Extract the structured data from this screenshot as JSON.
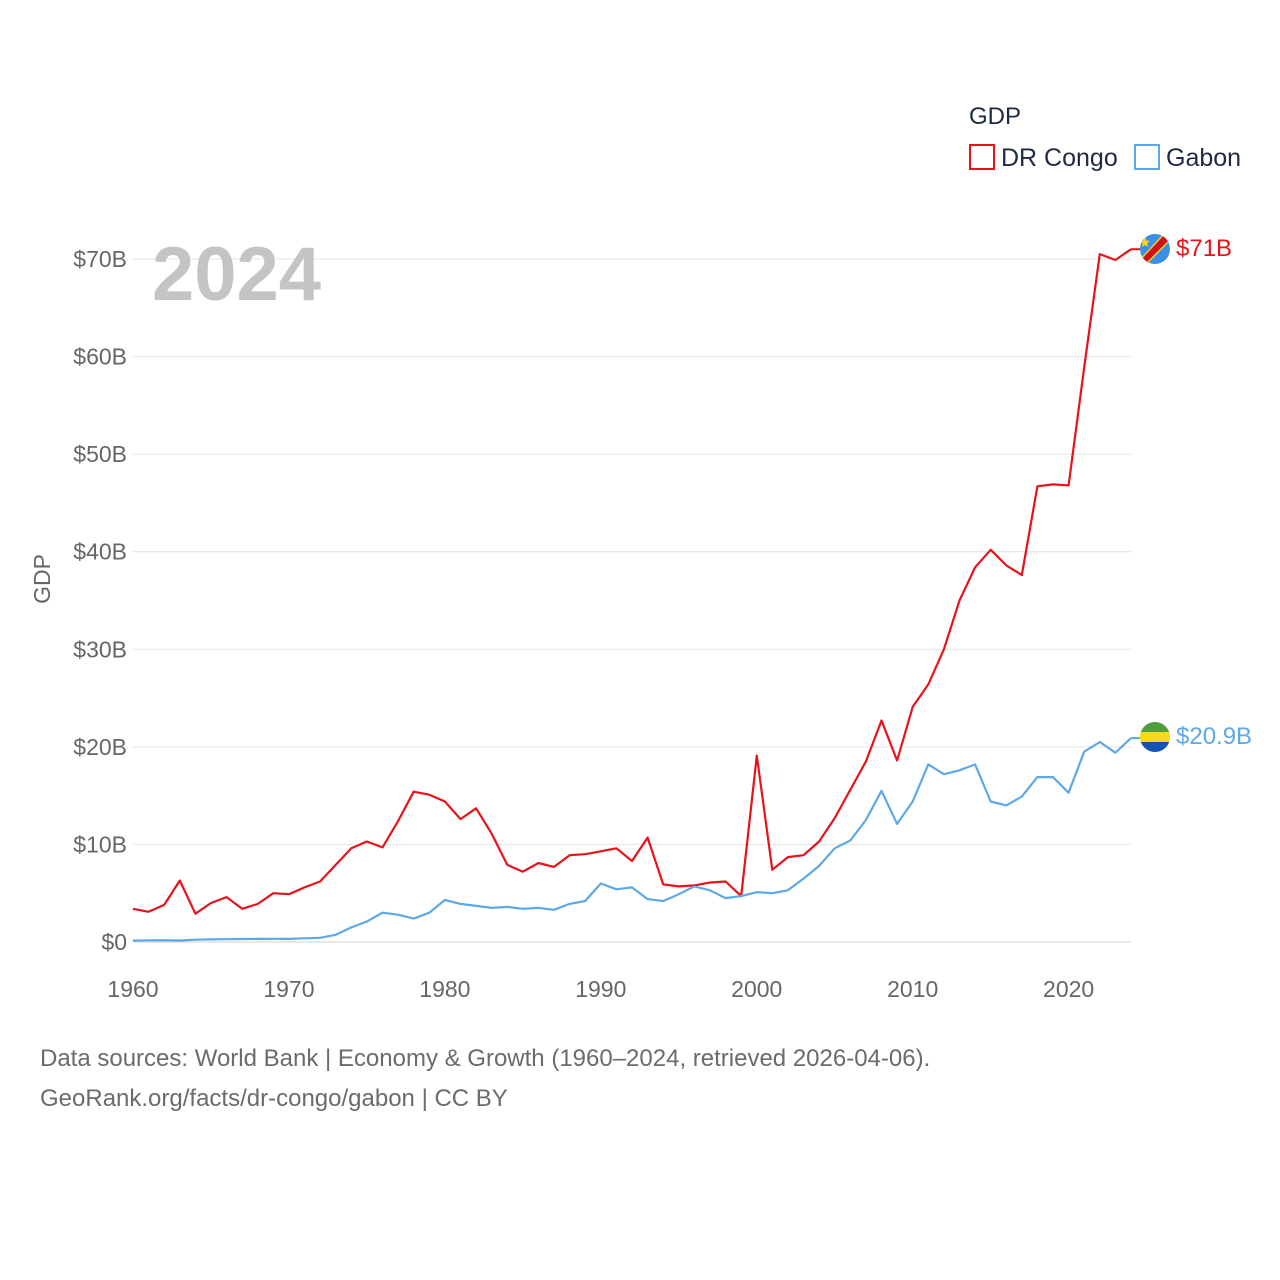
{
  "chart_data": {
    "type": "line",
    "legend_title": "GDP",
    "ylabel": "GDP",
    "year_label": "2024",
    "xlim": [
      1960,
      2024
    ],
    "ylim": [
      0,
      70
    ],
    "x_ticks": [
      "1960",
      "1970",
      "1980",
      "1990",
      "2000",
      "2010",
      "2020"
    ],
    "y_ticks": [
      "$0",
      "$10B",
      "$20B",
      "$30B",
      "$40B",
      "$50B",
      "$60B",
      "$70B"
    ],
    "x": [
      1960,
      1961,
      1962,
      1963,
      1964,
      1965,
      1966,
      1967,
      1968,
      1969,
      1970,
      1971,
      1972,
      1973,
      1974,
      1975,
      1976,
      1977,
      1978,
      1979,
      1980,
      1981,
      1982,
      1983,
      1984,
      1985,
      1986,
      1987,
      1988,
      1989,
      1990,
      1991,
      1992,
      1993,
      1994,
      1995,
      1996,
      1997,
      1998,
      1999,
      2000,
      2001,
      2002,
      2003,
      2004,
      2005,
      2006,
      2007,
      2008,
      2009,
      2010,
      2011,
      2012,
      2013,
      2014,
      2015,
      2016,
      2017,
      2018,
      2019,
      2020,
      2021,
      2022,
      2023,
      2024
    ],
    "series": [
      {
        "name": "DR Congo",
        "color": "#e8131a",
        "end_label": "$71B",
        "flag_icon": "dr-congo-flag-icon",
        "values": [
          3.4,
          3.1,
          3.8,
          6.3,
          2.9,
          4.0,
          4.6,
          3.4,
          3.9,
          5.0,
          4.9,
          5.6,
          6.2,
          7.9,
          9.6,
          10.3,
          9.7,
          12.4,
          15.4,
          15.1,
          14.4,
          12.6,
          13.7,
          11.1,
          7.9,
          7.2,
          8.1,
          7.7,
          8.9,
          9.0,
          9.3,
          9.6,
          8.3,
          10.7,
          5.9,
          5.7,
          5.8,
          6.1,
          6.2,
          4.7,
          19.1,
          7.4,
          8.7,
          8.9,
          10.3,
          12.7,
          15.6,
          18.5,
          22.7,
          18.6,
          24.1,
          26.4,
          30.0,
          35.0,
          38.4,
          40.2,
          38.6,
          37.6,
          46.7,
          46.9,
          46.8,
          58.9,
          70.5,
          69.9,
          71.0
        ]
      },
      {
        "name": "Gabon",
        "color": "#5ea8e6",
        "end_label": "$20.9B",
        "flag_icon": "gabon-flag-icon",
        "values": [
          0.14,
          0.17,
          0.18,
          0.15,
          0.24,
          0.27,
          0.29,
          0.31,
          0.32,
          0.33,
          0.32,
          0.38,
          0.43,
          0.74,
          1.5,
          2.1,
          3.0,
          2.8,
          2.4,
          3.0,
          4.3,
          3.9,
          3.7,
          3.5,
          3.6,
          3.4,
          3.5,
          3.3,
          3.9,
          4.2,
          6.0,
          5.4,
          5.6,
          4.4,
          4.2,
          4.9,
          5.7,
          5.3,
          4.5,
          4.7,
          5.1,
          5.0,
          5.3,
          6.5,
          7.8,
          9.6,
          10.4,
          12.5,
          15.5,
          12.1,
          14.4,
          18.2,
          17.2,
          17.6,
          18.2,
          14.4,
          14.0,
          14.9,
          16.9,
          16.9,
          15.3,
          19.5,
          20.5,
          19.4,
          20.9
        ]
      }
    ]
  },
  "footer": {
    "line1": "Data sources: World Bank | Economy & Growth (1960–2024, retrieved 2026-04-06).",
    "line2": "GeoRank.org/facts/dr-congo/gabon | CC BY"
  }
}
